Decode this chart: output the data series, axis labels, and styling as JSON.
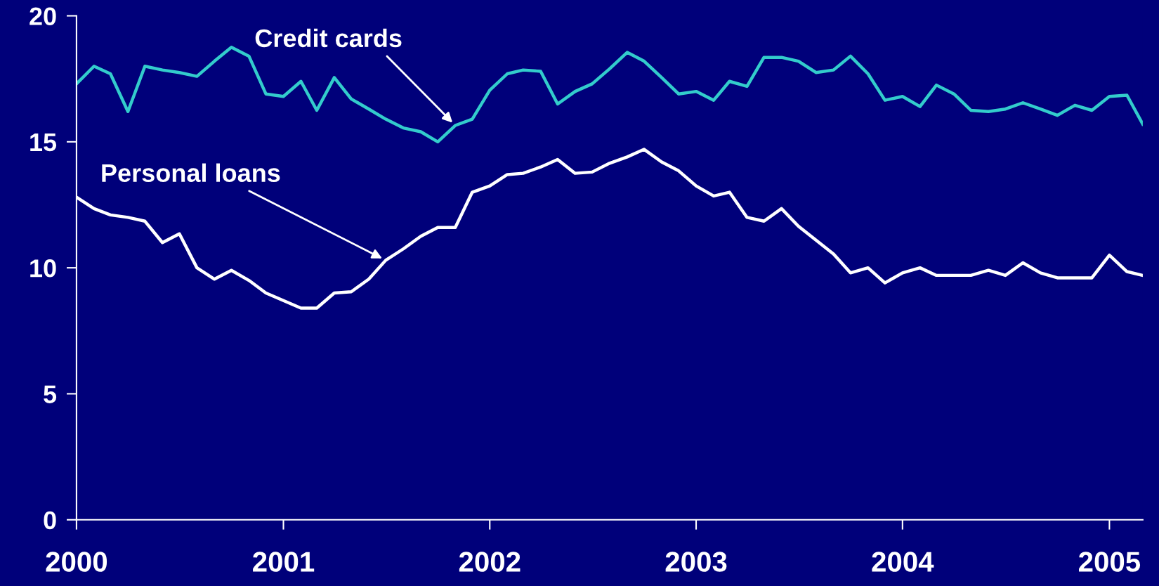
{
  "chart_data": {
    "type": "line",
    "x": [
      "2000-01",
      "2000-02",
      "2000-03",
      "2000-04",
      "2000-05",
      "2000-06",
      "2000-07",
      "2000-08",
      "2000-09",
      "2000-10",
      "2000-11",
      "2000-12",
      "2001-01",
      "2001-02",
      "2001-03",
      "2001-04",
      "2001-05",
      "2001-06",
      "2001-07",
      "2001-08",
      "2001-09",
      "2001-10",
      "2001-11",
      "2001-12",
      "2002-01",
      "2002-02",
      "2002-03",
      "2002-04",
      "2002-05",
      "2002-06",
      "2002-07",
      "2002-08",
      "2002-09",
      "2002-10",
      "2002-11",
      "2002-12",
      "2003-01",
      "2003-02",
      "2003-03",
      "2003-04",
      "2003-05",
      "2003-06",
      "2003-07",
      "2003-08",
      "2003-09",
      "2003-10",
      "2003-11",
      "2003-12",
      "2004-01",
      "2004-02",
      "2004-03",
      "2004-04",
      "2004-05",
      "2004-06",
      "2004-07",
      "2004-08",
      "2004-09",
      "2004-10",
      "2004-11",
      "2004-12",
      "2005-01",
      "2005-02",
      "2005-03"
    ],
    "series": [
      {
        "name": "Credit cards",
        "color": "#33cccc",
        "values": [
          17.3,
          18.0,
          17.7,
          16.2,
          18.0,
          17.85,
          17.75,
          17.6,
          18.2,
          18.75,
          18.4,
          16.9,
          16.8,
          17.4,
          16.25,
          17.55,
          16.7,
          16.3,
          15.9,
          15.55,
          15.4,
          15.0,
          15.65,
          15.9,
          17.05,
          17.7,
          17.85,
          17.8,
          16.5,
          17.0,
          17.3,
          17.9,
          18.55,
          18.2,
          17.55,
          16.9,
          17.0,
          16.65,
          17.4,
          17.2,
          18.35,
          18.35,
          18.2,
          17.75,
          17.85,
          18.4,
          17.7,
          16.65,
          16.8,
          16.4,
          17.25,
          16.9,
          16.25,
          16.2,
          16.3,
          16.55,
          16.3,
          16.05,
          16.45,
          16.25,
          16.8,
          16.85,
          15.7
        ]
      },
      {
        "name": "Personal loans",
        "color": "#ffffff",
        "values": [
          12.8,
          12.35,
          12.1,
          12.0,
          11.85,
          11.0,
          11.35,
          10.0,
          9.55,
          9.9,
          9.5,
          9.0,
          8.7,
          8.4,
          8.4,
          9.0,
          9.05,
          9.55,
          10.3,
          10.75,
          11.25,
          11.6,
          11.6,
          13.0,
          13.25,
          13.7,
          13.75,
          14.0,
          14.3,
          13.75,
          13.8,
          14.15,
          14.4,
          14.7,
          14.2,
          13.85,
          13.25,
          12.85,
          13.0,
          12.0,
          11.85,
          12.35,
          11.65,
          11.1,
          10.55,
          9.8,
          10.0,
          9.4,
          9.8,
          10.0,
          9.7,
          9.7,
          9.7,
          9.9,
          9.7,
          10.2,
          9.8,
          9.6,
          9.6,
          9.6,
          10.5,
          9.85,
          9.7
        ]
      }
    ],
    "xlim": [
      "2000-01",
      "2005-03"
    ],
    "xticks": [
      {
        "value": "2000-01",
        "label": "2000"
      },
      {
        "value": "2001-01",
        "label": "2001"
      },
      {
        "value": "2002-01",
        "label": "2002"
      },
      {
        "value": "2003-01",
        "label": "2003"
      },
      {
        "value": "2004-01",
        "label": "2004"
      },
      {
        "value": "2005-01",
        "label": "2005"
      }
    ],
    "ylim": [
      0,
      20
    ],
    "yticks": [
      0,
      5,
      10,
      15,
      20
    ],
    "grid": false,
    "legend": false,
    "marker": "none",
    "line_style": "solid"
  }
}
